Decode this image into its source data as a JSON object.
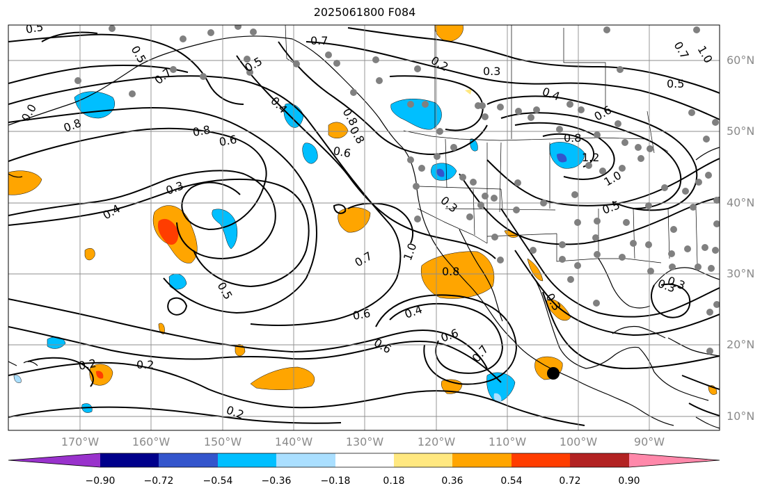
{
  "title": "2025061800 F084",
  "lat_labels": [
    "60°N",
    "50°N",
    "40°N",
    "30°N",
    "20°N",
    "10°N"
  ],
  "lon_labels": [
    "170°W",
    "160°W",
    "150°W",
    "140°W",
    "130°W",
    "120°W",
    "110°W",
    "100°W",
    "90°W"
  ],
  "colorbar": {
    "colors": [
      "#9932cc",
      "#00008b",
      "#3355cc",
      "#00bfff",
      "#aadfff",
      "#ffffff",
      "#ffe880",
      "#ffa500",
      "#ff3d00",
      "#b22222",
      "#ff88aa"
    ],
    "tick_labels": [
      "−0.90",
      "−0.72",
      "−0.54",
      "−0.36",
      "−0.18",
      "0.18",
      "0.36",
      "0.54",
      "0.72",
      "0.90"
    ]
  },
  "contour_labels": [
    {
      "text": "0.5"
    },
    {
      "text": "0.5"
    },
    {
      "text": "0.7"
    },
    {
      "text": "0.2"
    },
    {
      "text": "0.3"
    },
    {
      "text": "0.7"
    },
    {
      "text": "0.8"
    },
    {
      "text": "0.7"
    },
    {
      "text": "0.5"
    },
    {
      "text": "0.5"
    },
    {
      "text": "0.4"
    },
    {
      "text": "0.4"
    },
    {
      "text": "0.8"
    },
    {
      "text": "0.6"
    },
    {
      "text": "0.8"
    },
    {
      "text": "1.2"
    },
    {
      "text": "1.0"
    },
    {
      "text": "0.0"
    },
    {
      "text": "0.8"
    },
    {
      "text": "0.6"
    },
    {
      "text": "0.3"
    },
    {
      "text": "0.6"
    },
    {
      "text": "0.8"
    },
    {
      "text": "0.4"
    },
    {
      "text": "1.0"
    },
    {
      "text": "0.5"
    },
    {
      "text": "0.3"
    },
    {
      "text": "0.3"
    },
    {
      "text": "0.5"
    },
    {
      "text": "1.0"
    },
    {
      "text": "0.7"
    },
    {
      "text": "0.8"
    },
    {
      "text": "0.3"
    },
    {
      "text": "0.6"
    },
    {
      "text": "0.4"
    },
    {
      "text": "0.6"
    },
    {
      "text": "0.6"
    },
    {
      "text": "0.7"
    },
    {
      "text": "0.2"
    },
    {
      "text": "0.2"
    },
    {
      "text": "0.2"
    },
    {
      "text": "0.3"
    }
  ]
}
